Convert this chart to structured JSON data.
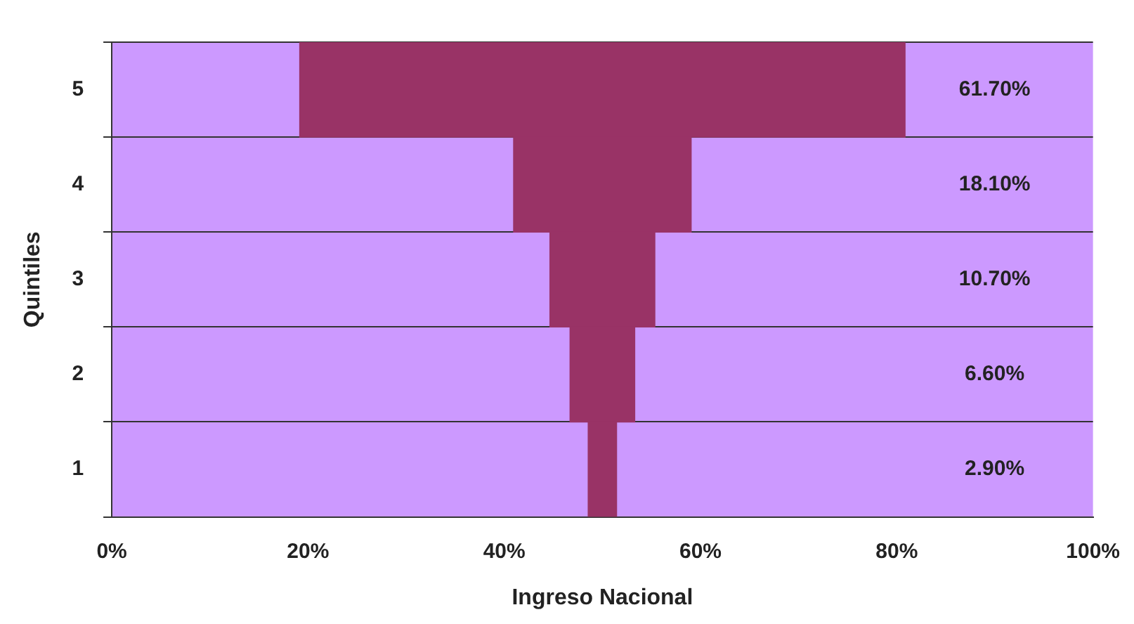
{
  "chart_data": {
    "type": "bar",
    "orientation": "horizontal",
    "xlabel": "Ingreso Nacional",
    "ylabel": "Quintiles",
    "categories": [
      "5",
      "4",
      "3",
      "2",
      "1"
    ],
    "values": [
      61.7,
      18.1,
      10.7,
      6.6,
      2.9
    ],
    "base": [
      19.15,
      40.95,
      44.65,
      46.7,
      48.55
    ],
    "value_labels": [
      "61.70%",
      "18.10%",
      "10.70%",
      "6.60%",
      "2.90%"
    ],
    "color": "#993366",
    "xlim": [
      0,
      100
    ],
    "xticks": [
      {
        "value": 0,
        "label": "0%"
      },
      {
        "value": 20,
        "label": "20%"
      },
      {
        "value": 40,
        "label": "40%"
      },
      {
        "value": 60,
        "label": "60%"
      },
      {
        "value": 80,
        "label": "80%"
      },
      {
        "value": 100,
        "label": "100%"
      }
    ],
    "grid": "y",
    "legend": false
  }
}
